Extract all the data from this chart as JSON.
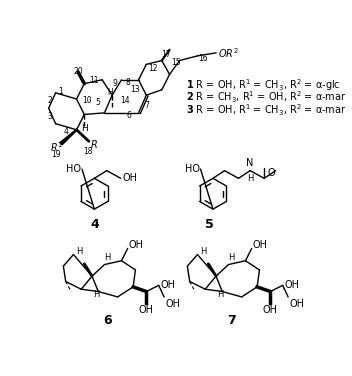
{
  "bg_color": "#ffffff",
  "line_color": "#000000",
  "label_4": "4",
  "label_5": "5",
  "label_6": "6",
  "label_7": "7",
  "compound1": "\\mathbf{1}\\;\\mathrm{R = OH,\\; R^1 = CH_3,\\; R^2 = \\alpha\\text{-}glc}",
  "compound2": "\\mathbf{2}\\;\\mathrm{R = CH_3,\\; R^1 = OH,\\; R^2 = \\alpha\\text{-}mar}",
  "compound3": "\\mathbf{3}\\;\\mathrm{R = OH,\\; R^1 = CH_3,\\; R^2 = \\alpha\\text{-}mar}"
}
